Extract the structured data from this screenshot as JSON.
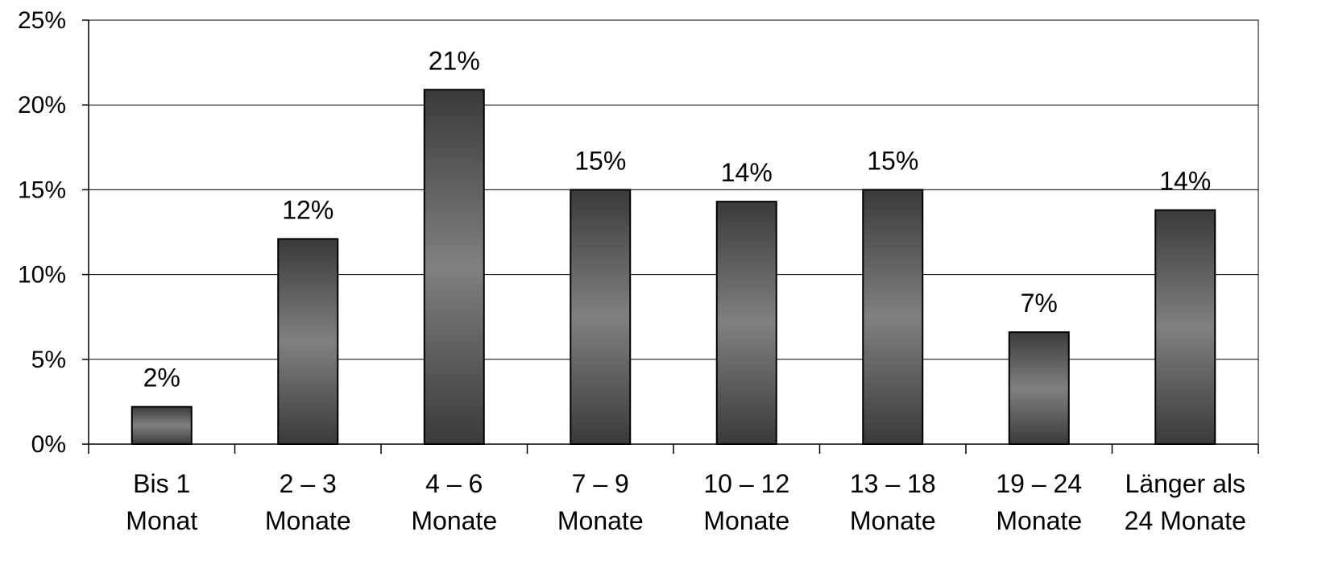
{
  "chart_data": {
    "type": "bar",
    "categories": [
      [
        "Bis 1",
        "Monat"
      ],
      [
        "2 – 3",
        "Monate"
      ],
      [
        "4 – 6",
        "Monate"
      ],
      [
        "7 – 9",
        "Monate"
      ],
      [
        "10 – 12",
        "Monate"
      ],
      [
        "13 – 18",
        "Monate"
      ],
      [
        "19 – 24",
        "Monate"
      ],
      [
        "Länger als",
        "24 Monate"
      ]
    ],
    "values": [
      2.2,
      12.1,
      20.9,
      15.0,
      14.3,
      15.0,
      6.6,
      13.8
    ],
    "data_labels": [
      "2%",
      "12%",
      "21%",
      "15%",
      "14%",
      "15%",
      "7%",
      "14%"
    ],
    "y_ticks": [
      "0%",
      "5%",
      "10%",
      "15%",
      "20%",
      "25%"
    ],
    "y_tick_values": [
      0,
      5,
      10,
      15,
      20,
      25
    ],
    "ylim": [
      0,
      25
    ],
    "grid": true,
    "legend": "none",
    "colors": {
      "bar_edge": "#3a3a3a",
      "bar_mid": "#808080",
      "gridline": "#000000",
      "axis": "#000000"
    }
  }
}
